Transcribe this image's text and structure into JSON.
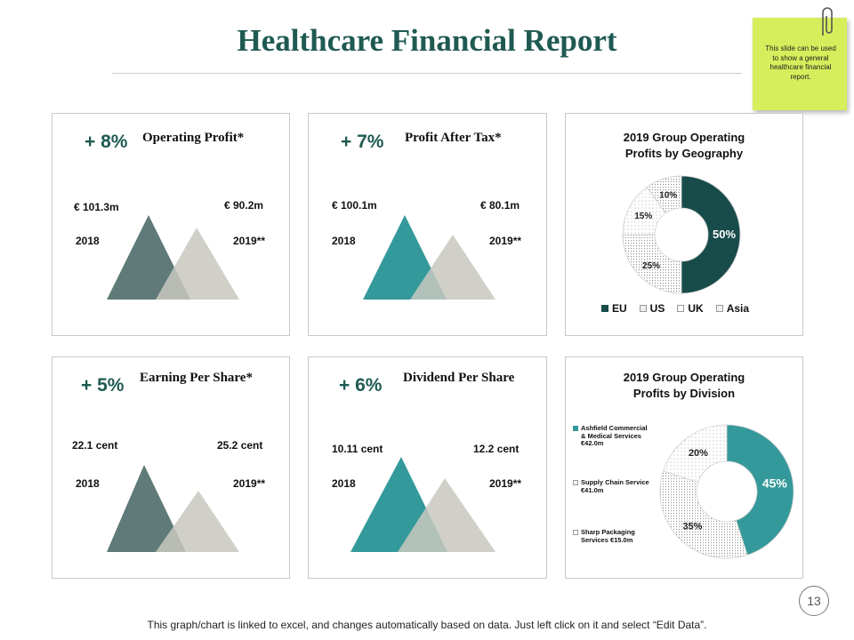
{
  "title": "Healthcare Financial Report",
  "sticky_note": "This slide can be used to show a general healthcare financial report.",
  "slide_number": "13",
  "footer": "This graph/chart is linked to excel, and changes automatically based on data. Just left click on it and select “Edit Data”.",
  "colors": {
    "title": "#1f5a52",
    "slate": "#5f7a78",
    "teal": "#34999a",
    "gray": "#c8c8bf",
    "dark_teal": "#184c4a",
    "sticky": "#d6ee5b"
  },
  "metrics": [
    {
      "change": "+ 8%",
      "title": "Operating Profit*",
      "value_2018": "€ 101.3m",
      "value_2019": "€ 90.2m",
      "year_2018": "2018",
      "year_2019": "2019**",
      "color": "#5f7a78"
    },
    {
      "change": "+ 7%",
      "title": "Profit After Tax*",
      "value_2018": "€ 100.1m",
      "value_2019": "€ 80.1m",
      "year_2018": "2018",
      "year_2019": "2019**",
      "color": "#34999a"
    },
    {
      "change": "+ 5%",
      "title": "Earning Per Share*",
      "value_2018": "22.1 cent",
      "value_2019": "25.2 cent",
      "year_2018": "2018",
      "year_2019": "2019**",
      "color": "#5f7a78"
    },
    {
      "change": "+ 6%",
      "title": "Dividend Per Share",
      "value_2018": "10.11 cent",
      "value_2019": "12.2 cent",
      "year_2018": "2018",
      "year_2019": "2019**",
      "color": "#34999a"
    }
  ],
  "chart_data": [
    {
      "type": "pie",
      "title_line1": "2019 Group Operating",
      "title_line2": "Profits by Geography",
      "categories": [
        "EU",
        "US",
        "UK",
        "Asia"
      ],
      "values": [
        50,
        25,
        15,
        10
      ],
      "labels": [
        "50%",
        "25%",
        "15%",
        "10%"
      ],
      "legend_position": "bottom"
    },
    {
      "type": "pie",
      "title_line1": "2019 Group Operating",
      "title_line2": "Profits  by Division",
      "categories": [
        "Ashfield Commercial & Medical Services €42.0m",
        "Supply Chain Service €41.0m",
        "Sharp Packaging Services €15.0m"
      ],
      "values": [
        45,
        35,
        20
      ],
      "labels": [
        "45%",
        "35%",
        "20%"
      ],
      "legend_position": "left",
      "legend_lines": [
        [
          "Ashfield Commercial",
          "& Medical Services",
          "€42.0m"
        ],
        [
          "Supply Chain Service",
          "€41.0m"
        ],
        [
          "Sharp Packaging",
          "Services €15.0m"
        ]
      ]
    }
  ]
}
